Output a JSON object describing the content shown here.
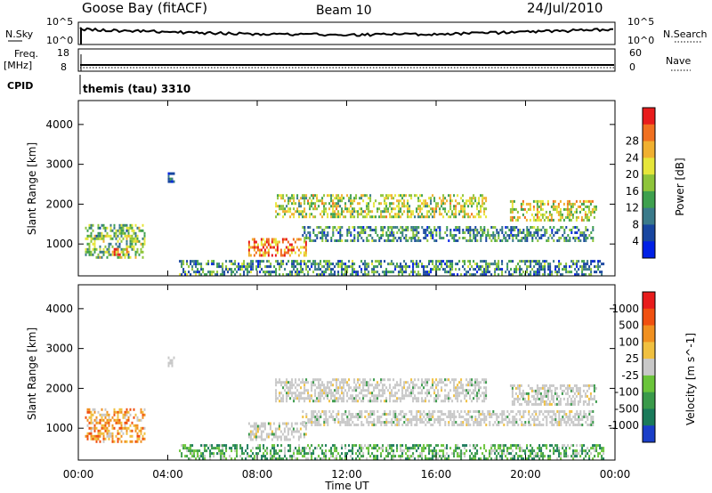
{
  "header": {
    "station": "Goose Bay (fitACF)",
    "beam": "Beam 10",
    "date": "24/Jul/2010"
  },
  "noise_panel": {
    "left_label": "N.Sky",
    "right_label": "N.Search",
    "left_ticks": [
      "10^5",
      "10^0"
    ],
    "right_ticks": [
      "10^5",
      "10^0"
    ]
  },
  "freq_panel": {
    "left_label_line1": "Freq.",
    "left_label_line2": "[MHz]",
    "right_label": "Nave",
    "left_ticks": [
      "18",
      "8"
    ],
    "right_ticks": [
      "60",
      "0"
    ]
  },
  "cpid_panel": {
    "label": "CPID",
    "program": "themis (tau) 3310"
  },
  "chart_data": [
    {
      "type": "heatmap",
      "name": "power",
      "ylabel": "Slant Range [km]",
      "y_ticks": [
        "1000",
        "2000",
        "3000",
        "4000"
      ],
      "ylim": [
        200,
        4600
      ],
      "xlim": [
        0,
        24
      ],
      "colorbar_label": "Power [dB]",
      "colorbar_ticks": [
        "4",
        "8",
        "12",
        "16",
        "20",
        "24",
        "28"
      ],
      "colors": [
        "#0020e6",
        "#1846a0",
        "#3a7a8a",
        "#3ea04e",
        "#8ec43a",
        "#e6e63a",
        "#f0b030",
        "#f07020",
        "#e81c1c"
      ],
      "echo_regions": [
        {
          "t0": 0.3,
          "t1": 3.0,
          "r0": 650,
          "r1": 1500,
          "level": 0.45
        },
        {
          "t0": 1.5,
          "t1": 2.2,
          "r0": 700,
          "r1": 900,
          "level": 0.85
        },
        {
          "t0": 7.6,
          "t1": 10.2,
          "r0": 700,
          "r1": 1150,
          "level": 0.85
        },
        {
          "t0": 8.8,
          "t1": 18.2,
          "r0": 1650,
          "r1": 2250,
          "level": 0.55
        },
        {
          "t0": 19.3,
          "t1": 23.2,
          "r0": 1600,
          "r1": 2100,
          "level": 0.6
        },
        {
          "t0": 10.0,
          "t1": 23.0,
          "r0": 1050,
          "r1": 1450,
          "level": 0.3
        },
        {
          "t0": 4.5,
          "t1": 23.5,
          "r0": 250,
          "r1": 600,
          "level": 0.3
        },
        {
          "t0": 4.0,
          "t1": 4.3,
          "r0": 2550,
          "r1": 2800,
          "level": 0.2
        }
      ]
    },
    {
      "type": "heatmap",
      "name": "velocity",
      "ylabel": "Slant Range [km]",
      "y_ticks": [
        "1000",
        "2000",
        "3000",
        "4000"
      ],
      "ylim": [
        200,
        4600
      ],
      "xlim": [
        0,
        24
      ],
      "colorbar_label": "Velocity [m s^-1]",
      "colorbar_ticks": [
        "1000",
        "500",
        "100",
        "25",
        "-25",
        "-100",
        "-500",
        "-1000"
      ],
      "colors": [
        "#1a3ec8",
        "#1a7a5a",
        "#3a9a4a",
        "#6ac43a",
        "#c8c8c8",
        "#f0c040",
        "#f09020",
        "#f05010",
        "#e81c1c"
      ],
      "echo_regions": [
        {
          "t0": 0.3,
          "t1": 3.0,
          "r0": 650,
          "r1": 1500,
          "level": 0.7
        },
        {
          "t0": 7.6,
          "t1": 10.2,
          "r0": 700,
          "r1": 1150,
          "level": 0.45
        },
        {
          "t0": 8.8,
          "t1": 18.2,
          "r0": 1650,
          "r1": 2250,
          "level": 0.45
        },
        {
          "t0": 19.3,
          "t1": 23.2,
          "r0": 1600,
          "r1": 2100,
          "level": 0.45
        },
        {
          "t0": 10.0,
          "t1": 23.0,
          "r0": 1050,
          "r1": 1450,
          "level": 0.45
        },
        {
          "t0": 4.5,
          "t1": 23.5,
          "r0": 250,
          "r1": 600,
          "level": 0.3
        },
        {
          "t0": 4.0,
          "t1": 4.3,
          "r0": 2550,
          "r1": 2800,
          "level": 0.45
        }
      ]
    }
  ],
  "x_axis": {
    "ticks": [
      "00:00",
      "04:00",
      "08:00",
      "12:00",
      "16:00",
      "20:00",
      "00:00"
    ],
    "label": "Time UT"
  }
}
